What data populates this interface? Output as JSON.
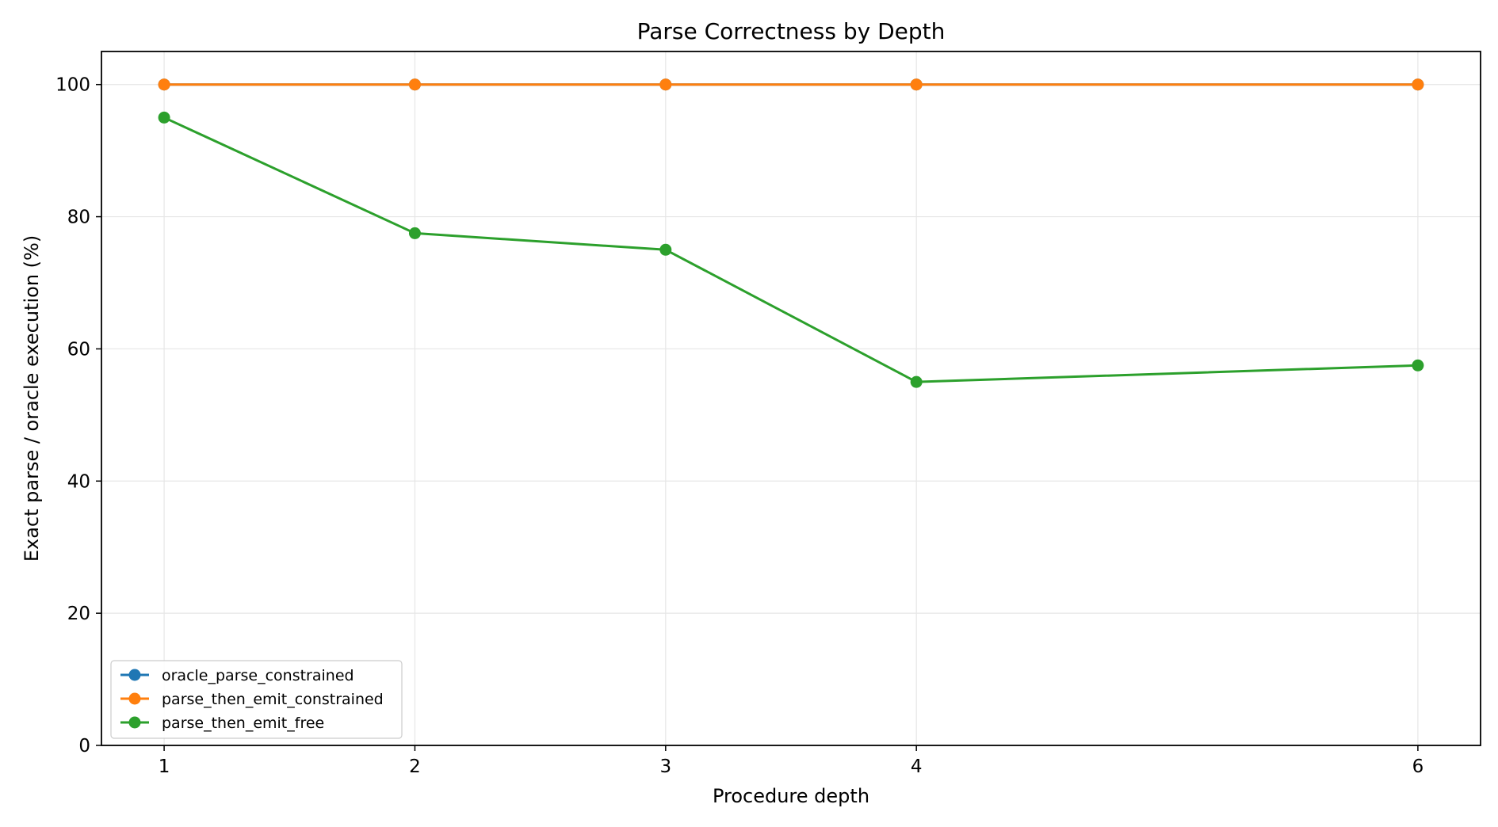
{
  "chart_data": {
    "type": "line",
    "title": "Parse Correctness by Depth",
    "xlabel": "Procedure depth",
    "ylabel": "Exact parse / oracle execution (%)",
    "x": [
      1,
      2,
      3,
      4,
      6
    ],
    "xticks": [
      "1",
      "2",
      "3",
      "4",
      "6"
    ],
    "yticks": [
      "0",
      "20",
      "40",
      "60",
      "80",
      "100"
    ],
    "xlim": [
      0.75,
      6.25
    ],
    "ylim": [
      0,
      105
    ],
    "grid": true,
    "legend_position": "lower-left",
    "series": [
      {
        "name": "oracle_parse_constrained",
        "color": "#1f77b4",
        "values": [
          100,
          100,
          100,
          100,
          100
        ]
      },
      {
        "name": "parse_then_emit_constrained",
        "color": "#ff7f0e",
        "values": [
          100,
          100,
          100,
          100,
          100
        ]
      },
      {
        "name": "parse_then_emit_free",
        "color": "#2ca02c",
        "values": [
          95,
          77.5,
          75,
          55,
          57.5
        ]
      }
    ]
  }
}
